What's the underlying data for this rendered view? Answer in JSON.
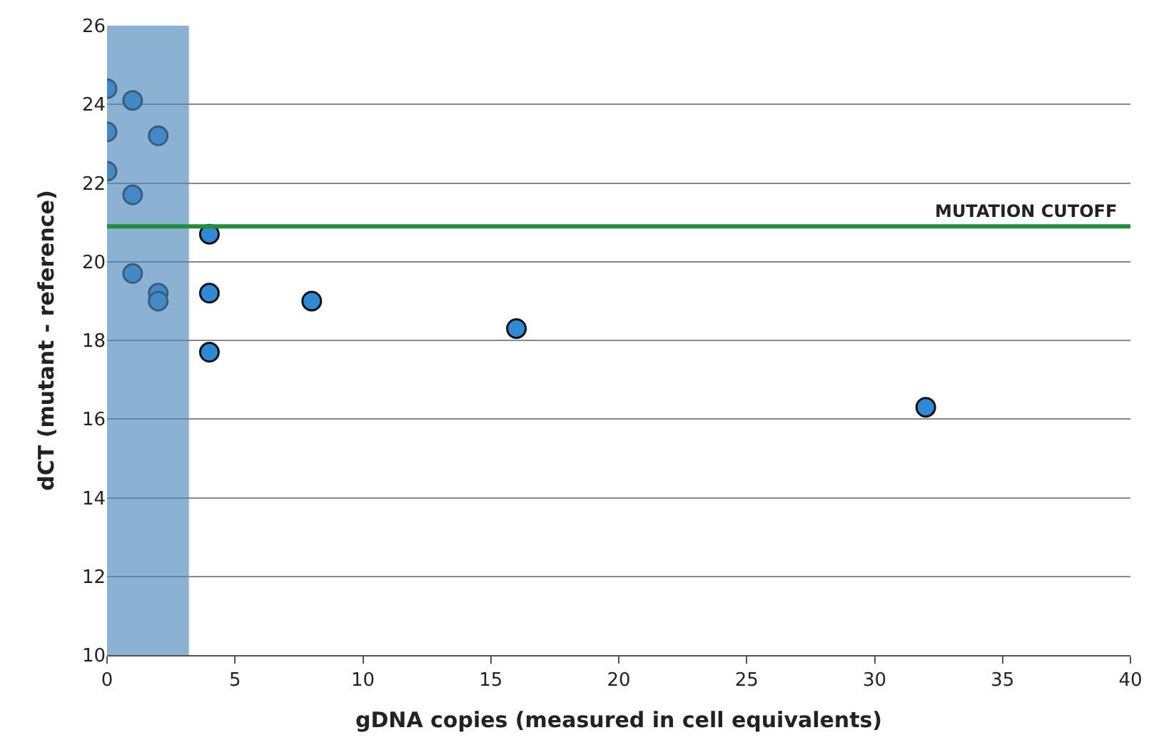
{
  "chart_data": {
    "type": "scatter",
    "xlabel": "gDNA copies (measured in cell equivalents)",
    "ylabel": "dCT (mutant - reference)",
    "x": [
      0,
      0,
      0,
      1,
      1,
      1,
      2,
      2,
      2,
      4,
      4,
      4,
      8,
      16,
      32
    ],
    "values": [
      24.4,
      23.3,
      22.3,
      24.1,
      21.7,
      19.7,
      23.2,
      19.2,
      19.0,
      20.7,
      19.2,
      17.7,
      19.0,
      18.3,
      16.3
    ],
    "color": "#2e8ad6",
    "marker": "circle",
    "xlim": [
      0,
      40
    ],
    "xticks": [
      0,
      5,
      10,
      15,
      20,
      25,
      30,
      35,
      40
    ],
    "ylim": [
      10,
      26
    ],
    "yticks": [
      10,
      12,
      14,
      16,
      18,
      20,
      22,
      24,
      26
    ],
    "grid": "y",
    "ref_lines": [
      {
        "axis": "y",
        "value": 20.9,
        "label": "MUTATION CUTOFF",
        "color": "#1f8f3a"
      }
    ],
    "bands": [
      {
        "axis": "x",
        "from": 0,
        "to": 3.2,
        "color": "#4f88bb"
      }
    ]
  }
}
